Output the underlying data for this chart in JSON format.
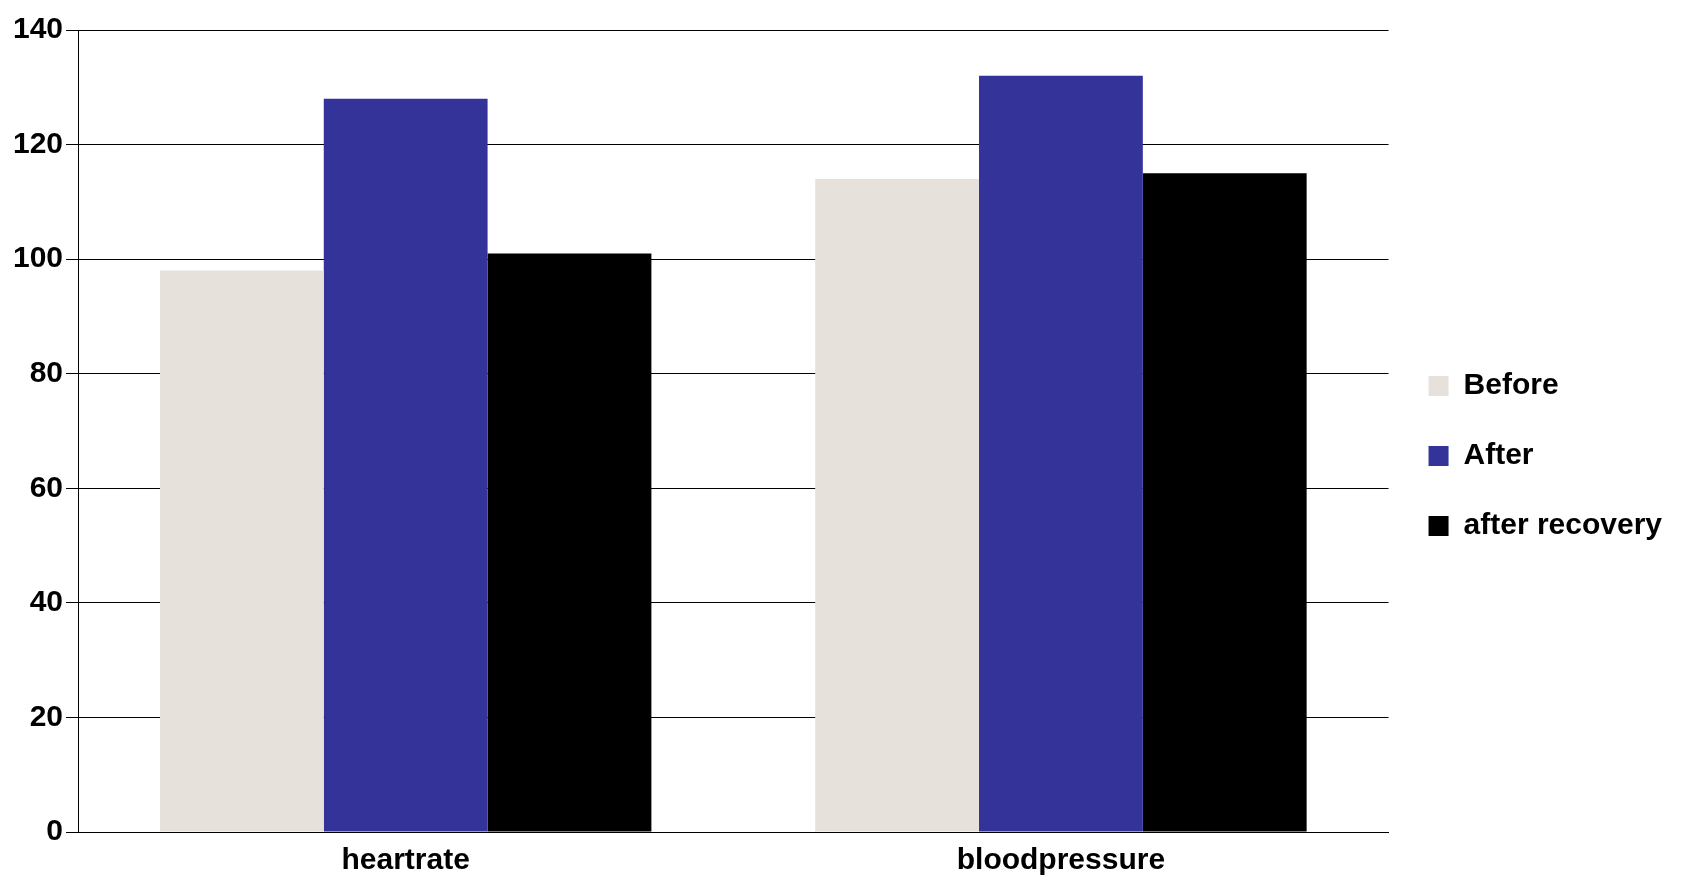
{
  "chart_data": {
    "type": "bar",
    "categories": [
      "heartrate",
      "bloodpressure"
    ],
    "series": [
      {
        "name": "Before",
        "color": "#e6e1da",
        "values": [
          98,
          114
        ]
      },
      {
        "name": "After",
        "color": "#333399",
        "values": [
          128,
          132
        ]
      },
      {
        "name": "after recovery",
        "color": "#000000",
        "values": [
          101,
          115
        ]
      }
    ],
    "ylim": [
      0,
      140
    ],
    "yticks": [
      0,
      20,
      40,
      60,
      80,
      100,
      120,
      140
    ],
    "grid": "y",
    "legend": "right"
  }
}
